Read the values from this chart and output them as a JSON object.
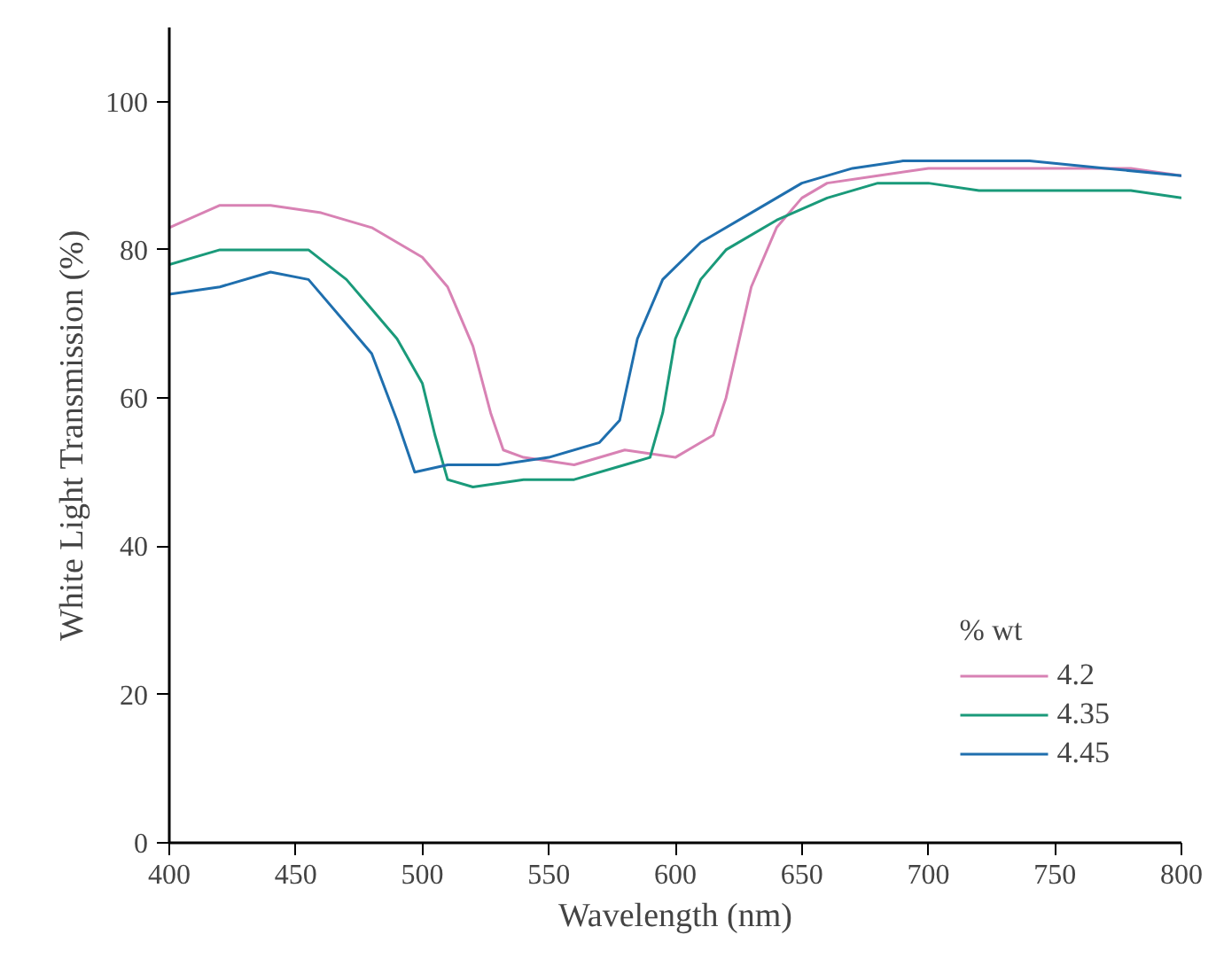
{
  "chart_data": {
    "type": "line",
    "xlabel": "Wavelength (nm)",
    "ylabel": "White Light Transmission (%)",
    "legend_title": "% wt",
    "xlim": [
      400,
      800
    ],
    "xticks": [
      400,
      450,
      500,
      550,
      600,
      650,
      700,
      750,
      800
    ],
    "ylim": [
      0,
      110
    ],
    "yticks": [
      0,
      20,
      40,
      60,
      80,
      100
    ],
    "grid": false,
    "legend": "bottom right",
    "marker": "none",
    "line_style": "solid",
    "series": [
      {
        "name": "4.2",
        "color": "#d882b4",
        "x": [
          400,
          420,
          440,
          460,
          480,
          500,
          510,
          520,
          527,
          532,
          540,
          560,
          580,
          600,
          615,
          620,
          630,
          640,
          650,
          660,
          680,
          700,
          720,
          750,
          780,
          800
        ],
        "values": [
          83,
          86,
          86,
          85,
          83,
          79,
          75,
          67,
          58,
          53,
          52,
          51,
          53,
          52,
          55,
          60,
          75,
          83,
          87,
          89,
          90,
          91,
          91,
          91,
          91,
          90
        ]
      },
      {
        "name": "4.35",
        "color": "#1a9a7a",
        "x": [
          400,
          420,
          440,
          455,
          470,
          480,
          490,
          500,
          505,
          510,
          520,
          540,
          560,
          580,
          590,
          595,
          600,
          610,
          620,
          640,
          660,
          680,
          700,
          720,
          750,
          780,
          800
        ],
        "values": [
          78,
          80,
          80,
          80,
          76,
          72,
          68,
          62,
          55,
          49,
          48,
          49,
          49,
          51,
          52,
          58,
          68,
          76,
          80,
          84,
          87,
          89,
          89,
          88,
          88,
          88,
          87
        ]
      },
      {
        "name": "4.45",
        "color": "#1f6fae",
        "x": [
          400,
          420,
          440,
          455,
          470,
          480,
          490,
          497,
          510,
          530,
          550,
          570,
          578,
          585,
          595,
          610,
          630,
          650,
          670,
          690,
          710,
          740,
          770,
          800
        ],
        "values": [
          74,
          75,
          77,
          76,
          70,
          66,
          57,
          50,
          51,
          51,
          52,
          54,
          57,
          68,
          76,
          81,
          85,
          89,
          91,
          92,
          92,
          92,
          91,
          90
        ]
      }
    ]
  }
}
